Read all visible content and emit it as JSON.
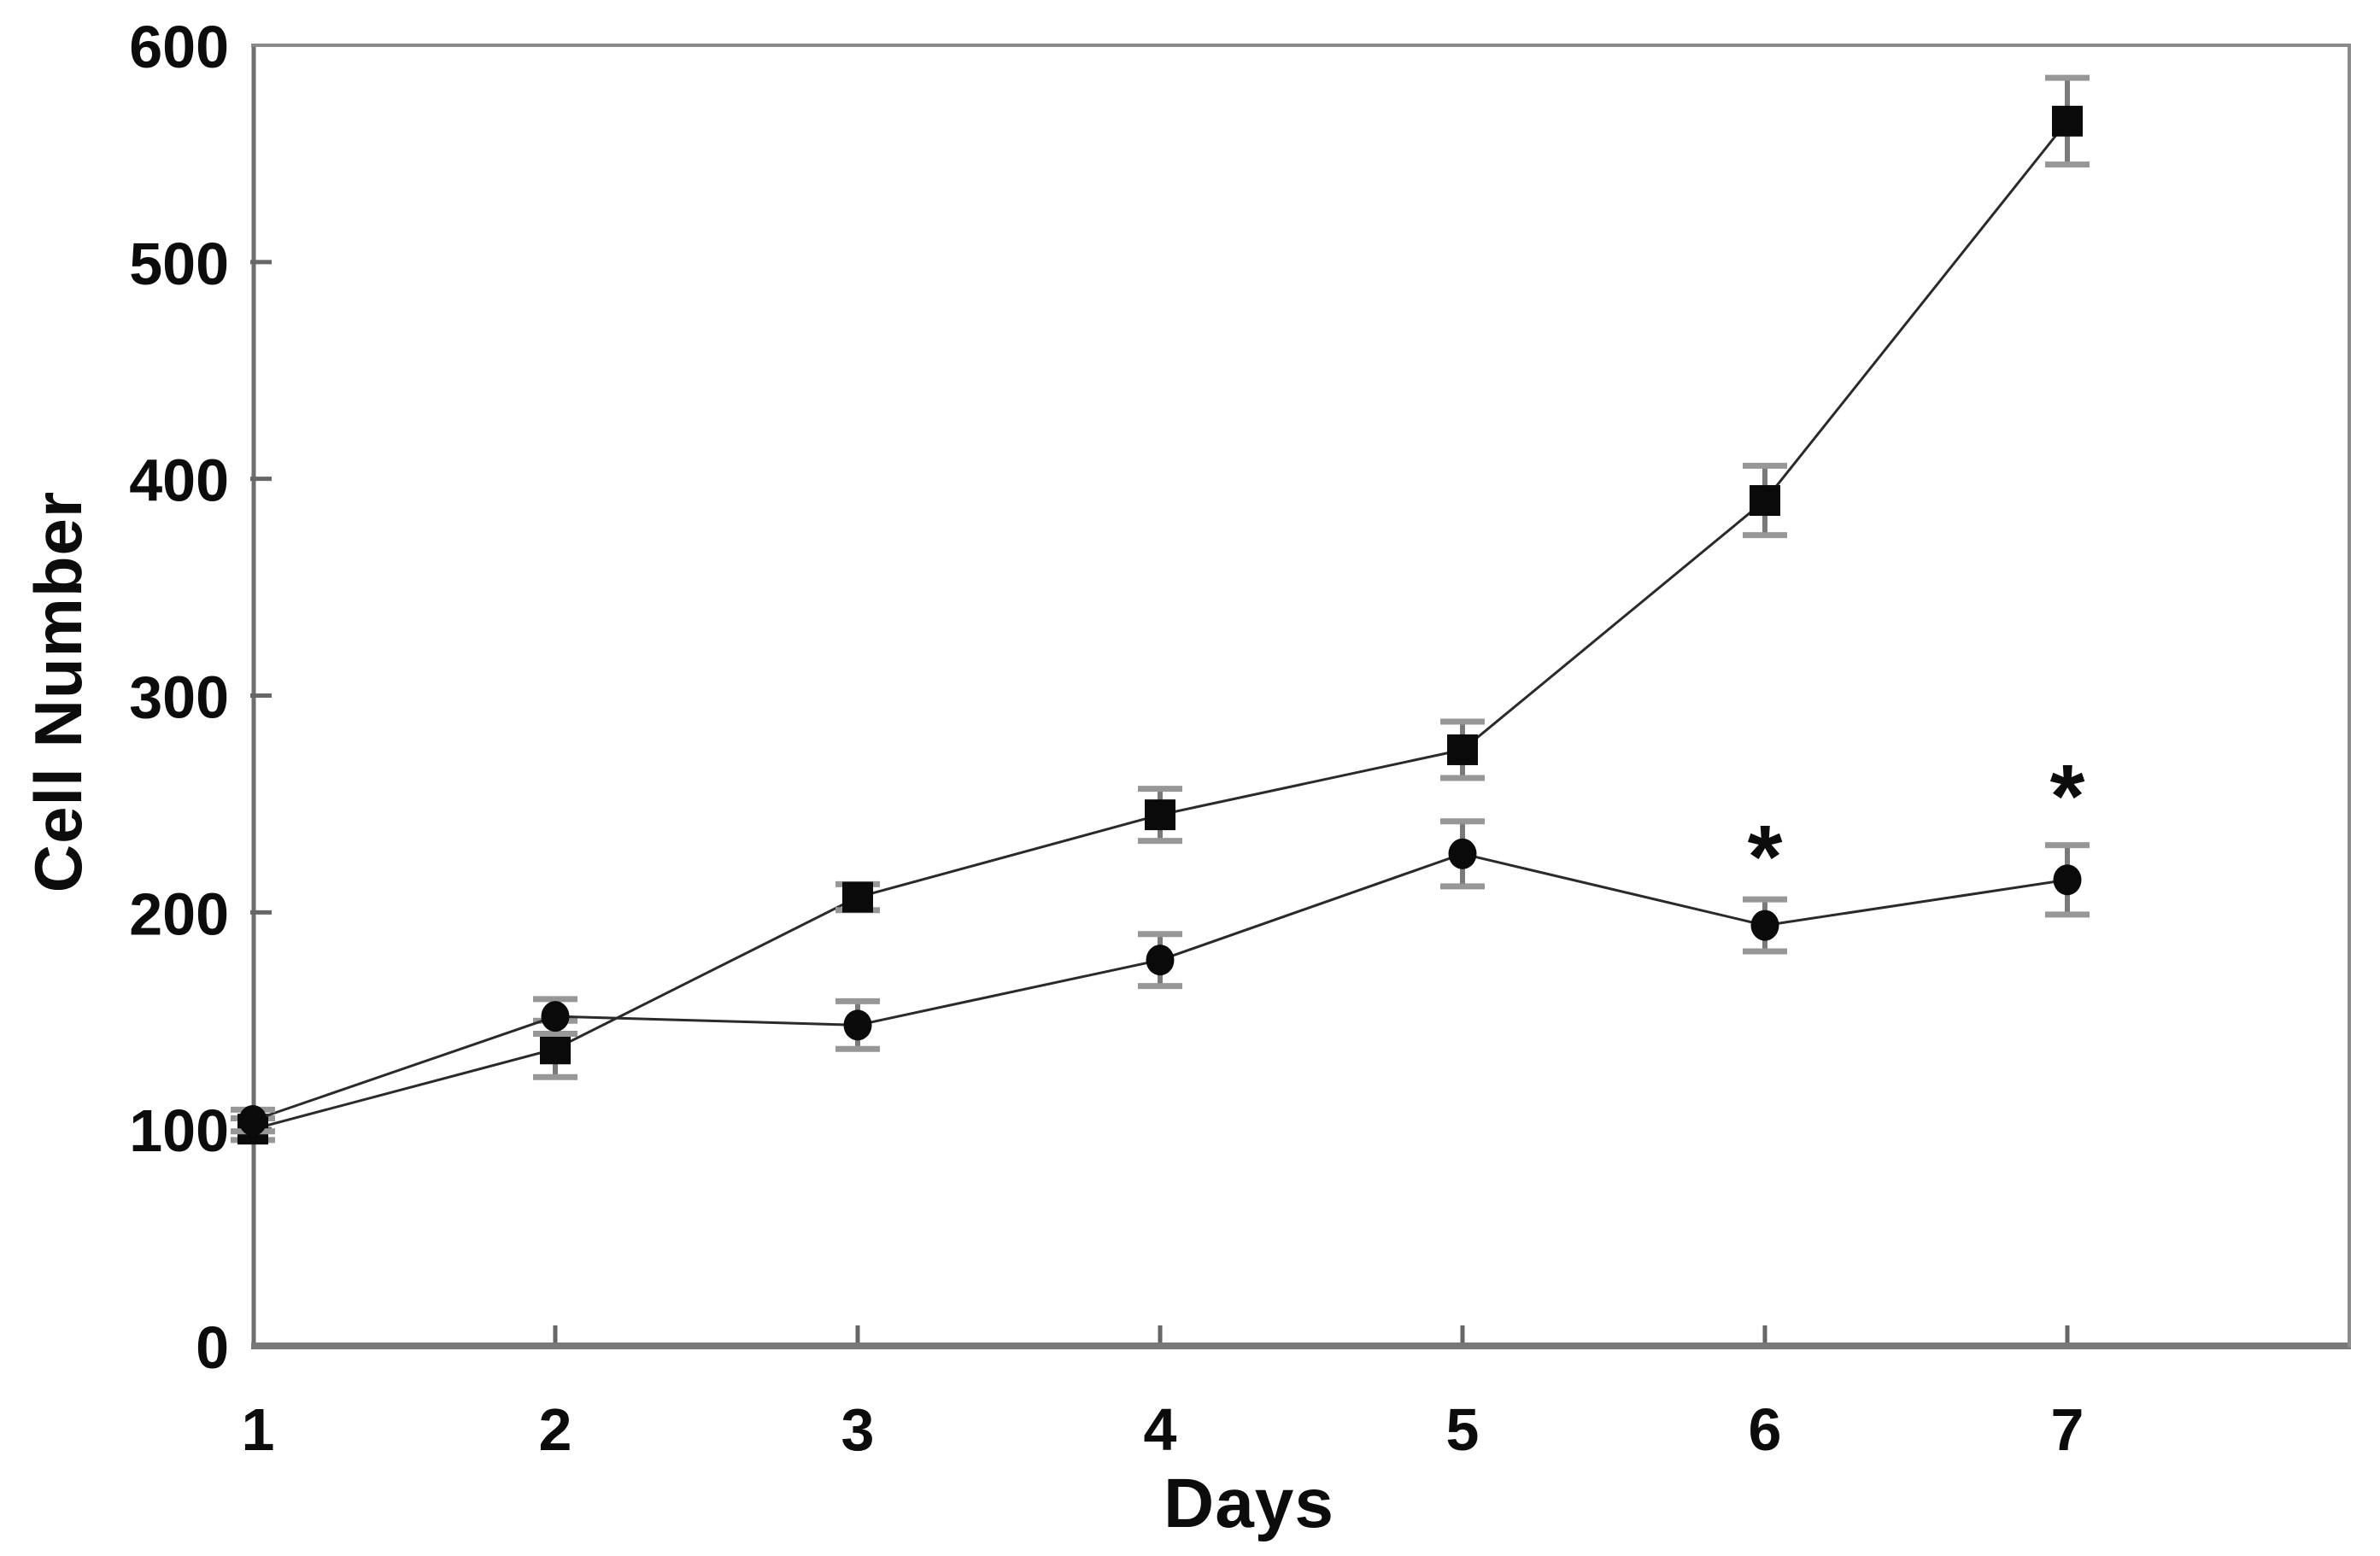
{
  "figure": {
    "background_color": "#ffffff",
    "frame_color": "#6e6e6e",
    "data_color": "#0a0a0a",
    "error_bar_color": "#7a7a7a",
    "error_cap_color": "#979797"
  },
  "chart_data": {
    "type": "line",
    "title": "",
    "xlabel": "Days",
    "ylabel": "Cell Number",
    "x": [
      1,
      2,
      3,
      4,
      5,
      6,
      7
    ],
    "xticks": [
      1,
      2,
      3,
      4,
      5,
      6,
      7
    ],
    "yticks": [
      0,
      100,
      200,
      300,
      400,
      500,
      600
    ],
    "xlim": [
      1,
      7.95
    ],
    "ylim": [
      0,
      600
    ],
    "grid": false,
    "legend_position": "none",
    "series": [
      {
        "name": "filled-square series",
        "marker": "square",
        "color": "#0a0a0a",
        "values": [
          100,
          137,
          207,
          245,
          275,
          390,
          565
        ],
        "errors": [
          5,
          13,
          6,
          12,
          13,
          16,
          20
        ]
      },
      {
        "name": "filled-circle series",
        "marker": "circle",
        "color": "#0a0a0a",
        "values": [
          104,
          152,
          148,
          178,
          227,
          194,
          215
        ],
        "errors": [
          5,
          8,
          11,
          12,
          15,
          12,
          16
        ]
      }
    ],
    "annotations": [
      {
        "x": 6,
        "y": 230,
        "text": "*"
      },
      {
        "x": 7,
        "y": 258,
        "text": "*"
      }
    ]
  }
}
